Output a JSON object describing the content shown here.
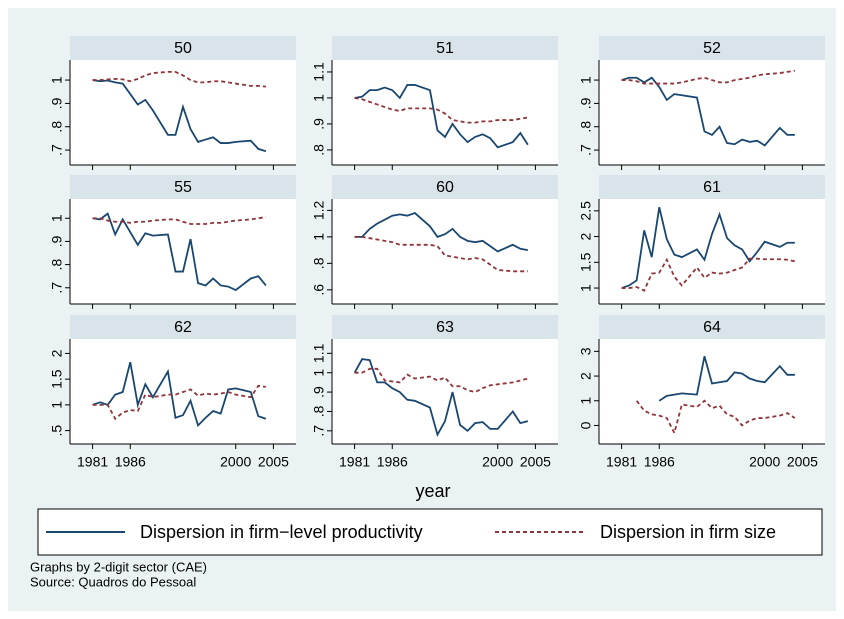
{
  "chart_data": [
    {
      "type": "line",
      "title": "50",
      "x": [
        1981,
        1982,
        1983,
        1984,
        1985,
        1986,
        1987,
        1988,
        1989,
        1991,
        1992,
        1993,
        1994,
        1995,
        1996,
        1997,
        1998,
        1999,
        2000,
        2002,
        2003,
        2004
      ],
      "xlim": [
        1978,
        2008
      ],
      "xticks": [
        1981,
        1986,
        2000,
        2005
      ],
      "ylim": [
        0.636,
        1.086
      ],
      "yticks": [
        {
          "value": 0.7,
          "label": ".7"
        },
        {
          "value": 0.8,
          "label": ".8"
        },
        {
          "value": 0.9,
          "label": ".9"
        },
        1
      ],
      "series": [
        {
          "name": "Dispersion in firm−level productivity",
          "color": "#1a476f",
          "values": [
            1,
            0.995,
            0.998,
            0.99,
            0.985,
            0.94,
            0.895,
            0.915,
            0.87,
            0.765,
            0.765,
            0.885,
            0.79,
            0.735,
            0.745,
            0.755,
            0.73,
            0.73,
            0.735,
            0.74,
            0.705,
            0.695
          ]
        },
        {
          "name": "Dispersion in firm size",
          "color": "#90353b",
          "values": [
            1,
            1,
            1.003,
            1.005,
            1.003,
            0.995,
            1.005,
            1.02,
            1.03,
            1.035,
            1.035,
            1.02,
            1.0,
            0.99,
            0.99,
            0.995,
            0.995,
            0.99,
            0.985,
            0.975,
            0.975,
            0.972
          ]
        }
      ]
    },
    {
      "type": "line",
      "title": "51",
      "x": [
        1981,
        1982,
        1983,
        1984,
        1985,
        1986,
        1987,
        1988,
        1989,
        1991,
        1992,
        1993,
        1994,
        1995,
        1996,
        1997,
        1998,
        1999,
        2000,
        2002,
        2003,
        2004
      ],
      "xlim": [
        1978,
        2008
      ],
      "xticks": [
        1981,
        1986,
        2000,
        2005
      ],
      "ylim": [
        0.742,
        1.146
      ],
      "yticks": [
        {
          "value": 0.8,
          "label": ".8"
        },
        {
          "value": 0.9,
          "label": ".9"
        },
        1,
        1.1
      ],
      "series": [
        {
          "name": "Dispersion in firm−level productivity",
          "color": "#1a476f",
          "values": [
            1,
            1.005,
            1.03,
            1.03,
            1.04,
            1.03,
            1.0,
            1.05,
            1.05,
            1.03,
            0.875,
            0.85,
            0.9,
            0.86,
            0.83,
            0.85,
            0.86,
            0.845,
            0.81,
            0.83,
            0.865,
            0.82
          ]
        },
        {
          "name": "Dispersion in firm size",
          "color": "#90353b",
          "values": [
            1,
            0.995,
            0.985,
            0.975,
            0.965,
            0.955,
            0.95,
            0.96,
            0.96,
            0.96,
            0.955,
            0.94,
            0.915,
            0.91,
            0.905,
            0.905,
            0.91,
            0.91,
            0.915,
            0.915,
            0.92,
            0.925
          ]
        }
      ]
    },
    {
      "type": "line",
      "title": "52",
      "x": [
        1981,
        1982,
        1983,
        1984,
        1985,
        1986,
        1987,
        1988,
        1989,
        1991,
        1992,
        1993,
        1994,
        1995,
        1996,
        1997,
        1998,
        1999,
        2000,
        2002,
        2003,
        2004
      ],
      "xlim": [
        1978,
        2008
      ],
      "xticks": [
        1981,
        1986,
        2000,
        2005
      ],
      "ylim": [
        0.636,
        1.086
      ],
      "yticks": [
        {
          "value": 0.7,
          "label": ".7"
        },
        {
          "value": 0.8,
          "label": ".8"
        },
        {
          "value": 0.9,
          "label": ".9"
        },
        1
      ],
      "series": [
        {
          "name": "Dispersion in firm−level productivity",
          "color": "#1a476f",
          "values": [
            1,
            1.01,
            1.01,
            0.99,
            1.01,
            0.97,
            0.915,
            0.94,
            0.935,
            0.925,
            0.78,
            0.765,
            0.8,
            0.73,
            0.725,
            0.745,
            0.735,
            0.74,
            0.72,
            0.795,
            0.765,
            0.765
          ]
        },
        {
          "name": "Dispersion in firm size",
          "color": "#90353b",
          "values": [
            1,
            1,
            0.995,
            0.985,
            0.985,
            0.985,
            0.985,
            0.985,
            0.99,
            1.005,
            1.01,
            1.0,
            0.99,
            0.99,
            1.0,
            1.005,
            1.01,
            1.02,
            1.025,
            1.03,
            1.035,
            1.04
          ]
        }
      ]
    },
    {
      "type": "line",
      "title": "55",
      "x": [
        1981,
        1982,
        1983,
        1984,
        1985,
        1986,
        1987,
        1988,
        1989,
        1991,
        1992,
        1993,
        1994,
        1995,
        1996,
        1997,
        1998,
        1999,
        2000,
        2002,
        2003,
        2004
      ],
      "xlim": [
        1978,
        2008
      ],
      "xticks": [
        1981,
        1986,
        2000,
        2005
      ],
      "ylim": [
        0.63,
        1.083
      ],
      "yticks": [
        {
          "value": 0.7,
          "label": ".7"
        },
        {
          "value": 0.8,
          "label": ".8"
        },
        {
          "value": 0.9,
          "label": ".9"
        },
        1
      ],
      "series": [
        {
          "name": "Dispersion in firm−level productivity",
          "color": "#1a476f",
          "values": [
            1,
            0.995,
            1.02,
            0.93,
            0.995,
            0.94,
            0.885,
            0.935,
            0.925,
            0.93,
            0.77,
            0.77,
            0.91,
            0.72,
            0.71,
            0.74,
            0.71,
            0.705,
            0.69,
            0.74,
            0.75,
            0.71
          ]
        },
        {
          "name": "Dispersion in firm size",
          "color": "#90353b",
          "values": [
            1,
            1,
            0.99,
            0.985,
            0.985,
            0.98,
            0.985,
            0.985,
            0.99,
            0.995,
            0.995,
            0.985,
            0.975,
            0.975,
            0.975,
            0.98,
            0.98,
            0.985,
            0.99,
            0.995,
            1.0,
            1.005
          ]
        }
      ]
    },
    {
      "type": "line",
      "title": "60",
      "x": [
        1981,
        1982,
        1983,
        1984,
        1985,
        1986,
        1987,
        1988,
        1989,
        1991,
        1992,
        1993,
        1994,
        1995,
        1996,
        1997,
        1998,
        1999,
        2000,
        2002,
        2003,
        2004
      ],
      "xlim": [
        1978,
        2008
      ],
      "xticks": [
        1981,
        1986,
        2000,
        2005
      ],
      "ylim": [
        0.493,
        1.286
      ],
      "yticks": [
        {
          "value": 0.6,
          "label": ".6"
        },
        {
          "value": 0.8,
          "label": ".8"
        },
        1,
        1.2
      ],
      "series": [
        {
          "name": "Dispersion in firm−level productivity",
          "color": "#1a476f",
          "values": [
            1,
            1.0,
            1.06,
            1.1,
            1.13,
            1.16,
            1.17,
            1.16,
            1.18,
            1.08,
            1.0,
            1.02,
            1.06,
            1.0,
            0.97,
            0.96,
            0.97,
            0.93,
            0.89,
            0.94,
            0.91,
            0.9
          ]
        },
        {
          "name": "Dispersion in firm size",
          "color": "#90353b",
          "values": [
            1,
            1,
            0.99,
            0.98,
            0.97,
            0.96,
            0.94,
            0.94,
            0.94,
            0.94,
            0.93,
            0.86,
            0.85,
            0.84,
            0.83,
            0.84,
            0.83,
            0.79,
            0.75,
            0.74,
            0.74,
            0.74
          ]
        }
      ]
    },
    {
      "type": "line",
      "title": "61",
      "x": [
        1981,
        1982,
        1983,
        1984,
        1985,
        1986,
        1987,
        1988,
        1989,
        1991,
        1992,
        1993,
        1994,
        1995,
        1996,
        1997,
        1998,
        1999,
        2000,
        2002,
        2003,
        2004
      ],
      "xlim": [
        1978,
        2008
      ],
      "xticks": [
        1981,
        1986,
        2000,
        2005
      ],
      "ylim": [
        0.69,
        2.73
      ],
      "yticks": [
        1,
        1.5,
        2,
        2.5
      ],
      "series": [
        {
          "name": "Dispersion in firm−level productivity",
          "color": "#1a476f",
          "values": [
            1,
            1.05,
            1.15,
            2.12,
            1.6,
            2.57,
            1.95,
            1.65,
            1.6,
            1.75,
            1.55,
            2.05,
            2.43,
            1.97,
            1.83,
            1.75,
            1.52,
            1.7,
            1.9,
            1.8,
            1.88,
            1.88
          ]
        },
        {
          "name": "Dispersion in firm size",
          "color": "#90353b",
          "values": [
            1,
            1.0,
            1.02,
            0.95,
            1.28,
            1.3,
            1.55,
            1.22,
            1.05,
            1.4,
            1.2,
            1.3,
            1.28,
            1.3,
            1.35,
            1.4,
            1.57,
            1.57,
            1.56,
            1.56,
            1.55,
            1.52
          ]
        }
      ]
    },
    {
      "type": "line",
      "title": "62",
      "x": [
        1981,
        1982,
        1983,
        1984,
        1985,
        1986,
        1987,
        1988,
        1989,
        1991,
        1992,
        1993,
        1994,
        1995,
        1996,
        1997,
        1998,
        1999,
        2000,
        2002,
        2003,
        2004
      ],
      "xlim": [
        1978,
        2008
      ],
      "xticks": [
        1981,
        1986,
        2000,
        2005
      ],
      "ylim": [
        0.24,
        2.28
      ],
      "yticks": [
        {
          "value": 0.5,
          "label": ".5"
        },
        1,
        1.5,
        2
      ],
      "series": [
        {
          "name": "Dispersion in firm−level productivity",
          "color": "#1a476f",
          "values": [
            1,
            1.05,
            1.0,
            1.2,
            1.25,
            1.83,
            1.0,
            1.4,
            1.15,
            1.65,
            0.75,
            0.8,
            1.08,
            0.6,
            0.75,
            0.88,
            0.83,
            1.3,
            1.32,
            1.25,
            0.78,
            0.73
          ]
        },
        {
          "name": "Dispersion in firm size",
          "color": "#90353b",
          "values": [
            1,
            1,
            1.0,
            0.73,
            0.85,
            0.9,
            0.88,
            1.2,
            1.15,
            1.2,
            1.2,
            1.25,
            1.3,
            1.18,
            1.22,
            1.2,
            1.22,
            1.25,
            1.2,
            1.15,
            1.37,
            1.35
          ]
        }
      ]
    },
    {
      "type": "line",
      "title": "63",
      "x": [
        1981,
        1982,
        1983,
        1984,
        1985,
        1986,
        1987,
        1988,
        1989,
        1991,
        1992,
        1993,
        1994,
        1995,
        1996,
        1997,
        1998,
        1999,
        2000,
        2002,
        2003,
        2004
      ],
      "xlim": [
        1978,
        2008
      ],
      "xticks": [
        1981,
        1986,
        2000,
        2005
      ],
      "ylim": [
        0.632,
        1.174
      ],
      "yticks": [
        {
          "value": 0.7,
          "label": ".7"
        },
        {
          "value": 0.8,
          "label": ".8"
        },
        {
          "value": 0.9,
          "label": ".9"
        },
        1,
        1.1
      ],
      "series": [
        {
          "name": "Dispersion in firm−level productivity",
          "color": "#1a476f",
          "values": [
            1,
            1.07,
            1.065,
            0.95,
            0.95,
            0.92,
            0.9,
            0.86,
            0.855,
            0.82,
            0.68,
            0.75,
            0.9,
            0.73,
            0.7,
            0.74,
            0.745,
            0.71,
            0.71,
            0.8,
            0.74,
            0.75
          ]
        },
        {
          "name": "Dispersion in firm size",
          "color": "#90353b",
          "values": [
            1,
            1.0,
            1.02,
            1.02,
            0.96,
            0.955,
            0.95,
            0.99,
            0.97,
            0.98,
            0.96,
            0.975,
            0.93,
            0.93,
            0.91,
            0.9,
            0.92,
            0.935,
            0.94,
            0.95,
            0.96,
            0.97
          ]
        }
      ]
    },
    {
      "type": "line",
      "title": "64",
      "x": [
        1981,
        1982,
        1983,
        1984,
        1985,
        1986,
        1987,
        1988,
        1989,
        1991,
        1992,
        1993,
        1994,
        1995,
        1996,
        1997,
        1998,
        1999,
        2000,
        2002,
        2003,
        2004
      ],
      "xlim": [
        1978,
        2008
      ],
      "xticks": [
        1981,
        1986,
        2000,
        2005
      ],
      "ylim": [
        -0.75,
        3.5
      ],
      "yticks": [
        0,
        1,
        2,
        3
      ],
      "series": [
        {
          "name": "Dispersion in firm−level productivity",
          "color": "#1a476f",
          "values": [
            null,
            null,
            null,
            null,
            null,
            1.0,
            1.2,
            1.25,
            1.3,
            1.25,
            2.8,
            1.7,
            1.75,
            1.8,
            2.15,
            2.1,
            1.9,
            1.8,
            1.75,
            2.4,
            2.05,
            2.05
          ]
        },
        {
          "name": "Dispersion in firm size",
          "color": "#90353b",
          "values": [
            null,
            null,
            1.0,
            0.6,
            0.45,
            0.4,
            0.3,
            -0.3,
            0.85,
            0.75,
            1.0,
            0.7,
            0.8,
            0.45,
            0.35,
            0.0,
            0.2,
            0.3,
            0.3,
            0.4,
            0.5,
            0.3
          ]
        }
      ]
    }
  ],
  "xlabel": "year",
  "notes": [
    "Graphs by 2-digit sector (CAE)",
    "Source: Quadros do Pessoal"
  ]
}
